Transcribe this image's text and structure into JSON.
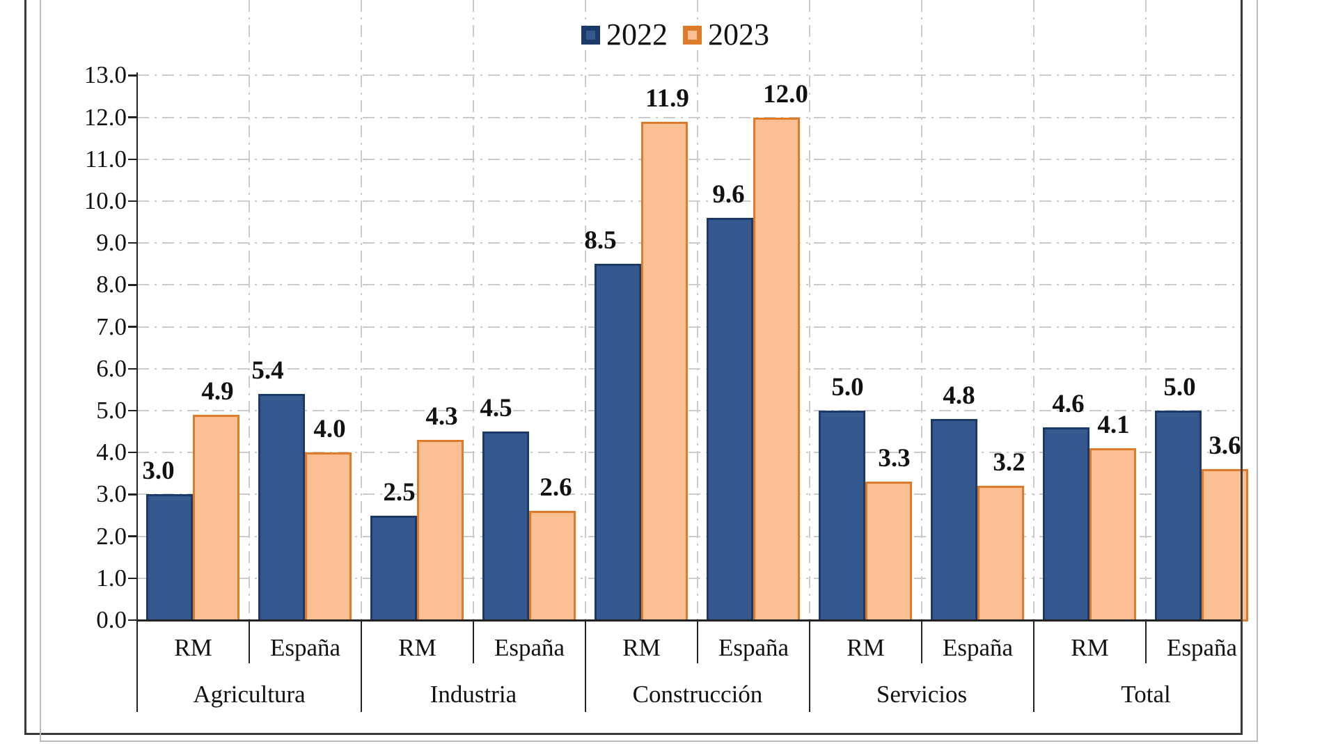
{
  "colors": {
    "bar_2022_fill": "#35598E",
    "bar_2022_border": "#1B3A68",
    "bar_2023_fill": "#FAC094",
    "bar_2023_border": "#DD7B2B",
    "grid": "#CBCBCB",
    "axis": "#222222",
    "frame_dark": "#3A3A3A",
    "frame_light": "#B9B9B9",
    "text": "#111111"
  },
  "legend": {
    "items": [
      {
        "label": "2022"
      },
      {
        "label": "2023"
      }
    ]
  },
  "chart_data": {
    "type": "bar",
    "title": "",
    "groups": [
      "Agricultura",
      "Industria",
      "Construcción",
      "Servicios",
      "Total"
    ],
    "subcategories": [
      "RM",
      "España"
    ],
    "categories": [
      "Agricultura RM",
      "Agricultura España",
      "Industria RM",
      "Industria España",
      "Construcción RM",
      "Construcción España",
      "Servicios RM",
      "Servicios España",
      "Total RM",
      "Total España"
    ],
    "series": [
      {
        "name": "2022",
        "fill": "#35598E",
        "border": "#1B3A68",
        "values": [
          3.0,
          5.4,
          2.5,
          4.5,
          8.5,
          9.6,
          5.0,
          4.8,
          4.6,
          5.0
        ],
        "value_labels": [
          "3.0",
          "5.4",
          "2.5",
          "4.5",
          "8.5",
          "9.6",
          "5.0",
          "4.8",
          "4.6",
          "5.0"
        ]
      },
      {
        "name": "2023",
        "fill": "#FAC094",
        "border": "#DD7B2B",
        "values": [
          4.9,
          4.0,
          4.3,
          2.6,
          11.9,
          12.0,
          3.3,
          3.2,
          4.1,
          3.6
        ],
        "value_labels": [
          "4.9",
          "4.0",
          "4.3",
          "2.6",
          "11.9",
          "12.0",
          "3.3",
          "3.2",
          "4.1",
          "3.6"
        ]
      }
    ],
    "ylim": [
      0,
      13
    ],
    "ytick_step": 1.0,
    "ytick_labels": [
      "0.0",
      "1.0",
      "2.0",
      "3.0",
      "4.0",
      "5.0",
      "6.0",
      "7.0",
      "8.0",
      "9.0",
      "10.0",
      "11.0",
      "12.0",
      "13.0"
    ],
    "grid": true,
    "legend_position": "top"
  }
}
